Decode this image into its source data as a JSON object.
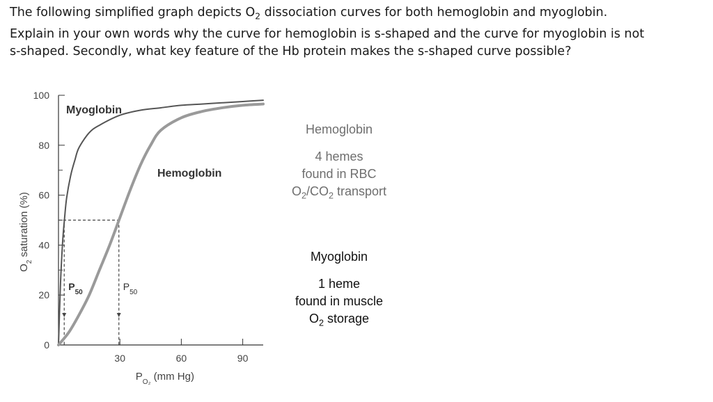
{
  "question": {
    "line1_prefix": "The following simplified graph depicts O",
    "line1_sub": "2",
    "line1_suffix": " dissociation curves for both hemoglobin and myoglobin.",
    "line2": "Explain in your own words why the curve for hemoglobin is s-shaped and the curve for myoglobin is not",
    "line3": "s-shaped. Secondly, what key feature of the Hb protein makes the s-shaped curve possible?"
  },
  "chart_data": {
    "type": "line",
    "xlabel": "PO2 (mm Hg)",
    "ylabel": "O2 saturation (%)",
    "xlim": [
      0,
      100
    ],
    "ylim": [
      0,
      100
    ],
    "x_ticks": [
      30,
      60,
      90
    ],
    "y_ticks": [
      0,
      20,
      40,
      60,
      80,
      100
    ],
    "series": [
      {
        "name": "Myoglobin",
        "color": "#555555",
        "x": [
          0,
          1,
          2,
          3,
          4,
          6,
          8,
          10,
          15,
          20,
          30,
          40,
          50,
          60,
          70,
          80,
          90,
          100
        ],
        "y": [
          0,
          25,
          41,
          51,
          59,
          68,
          74,
          79,
          85,
          88,
          92,
          94,
          95,
          96,
          96.5,
          97,
          97.5,
          98
        ]
      },
      {
        "name": "Hemoglobin",
        "color": "#9a9a9a",
        "x": [
          0,
          5,
          10,
          15,
          20,
          25,
          30,
          35,
          40,
          45,
          50,
          60,
          70,
          80,
          90,
          100
        ],
        "y": [
          0,
          5,
          12,
          20,
          30,
          40,
          51,
          62,
          72,
          80,
          86,
          91,
          93.5,
          95,
          96,
          96.5
        ]
      }
    ],
    "p50": [
      {
        "label": "P",
        "sub": "50",
        "x": 2.8,
        "y": 50
      },
      {
        "label": "P",
        "sub": "50",
        "x": 29.5,
        "y": 50
      }
    ],
    "annotations": [
      "Myoglobin",
      "Hemoglobin"
    ]
  },
  "side_labels": {
    "hemoglobin": {
      "title": "Hemoglobin",
      "line1": "4 hemes",
      "line2": "found in RBC",
      "line3_prefix": "O",
      "line3_sub1": "2",
      "line3_mid": "/CO",
      "line3_sub2": "2",
      "line3_suffix": " transport"
    },
    "myoglobin": {
      "title": "Myoglobin",
      "line1": "1 heme",
      "line2": "found in muscle",
      "line3_prefix": "O",
      "line3_sub": "2",
      "line3_suffix": " storage"
    }
  }
}
